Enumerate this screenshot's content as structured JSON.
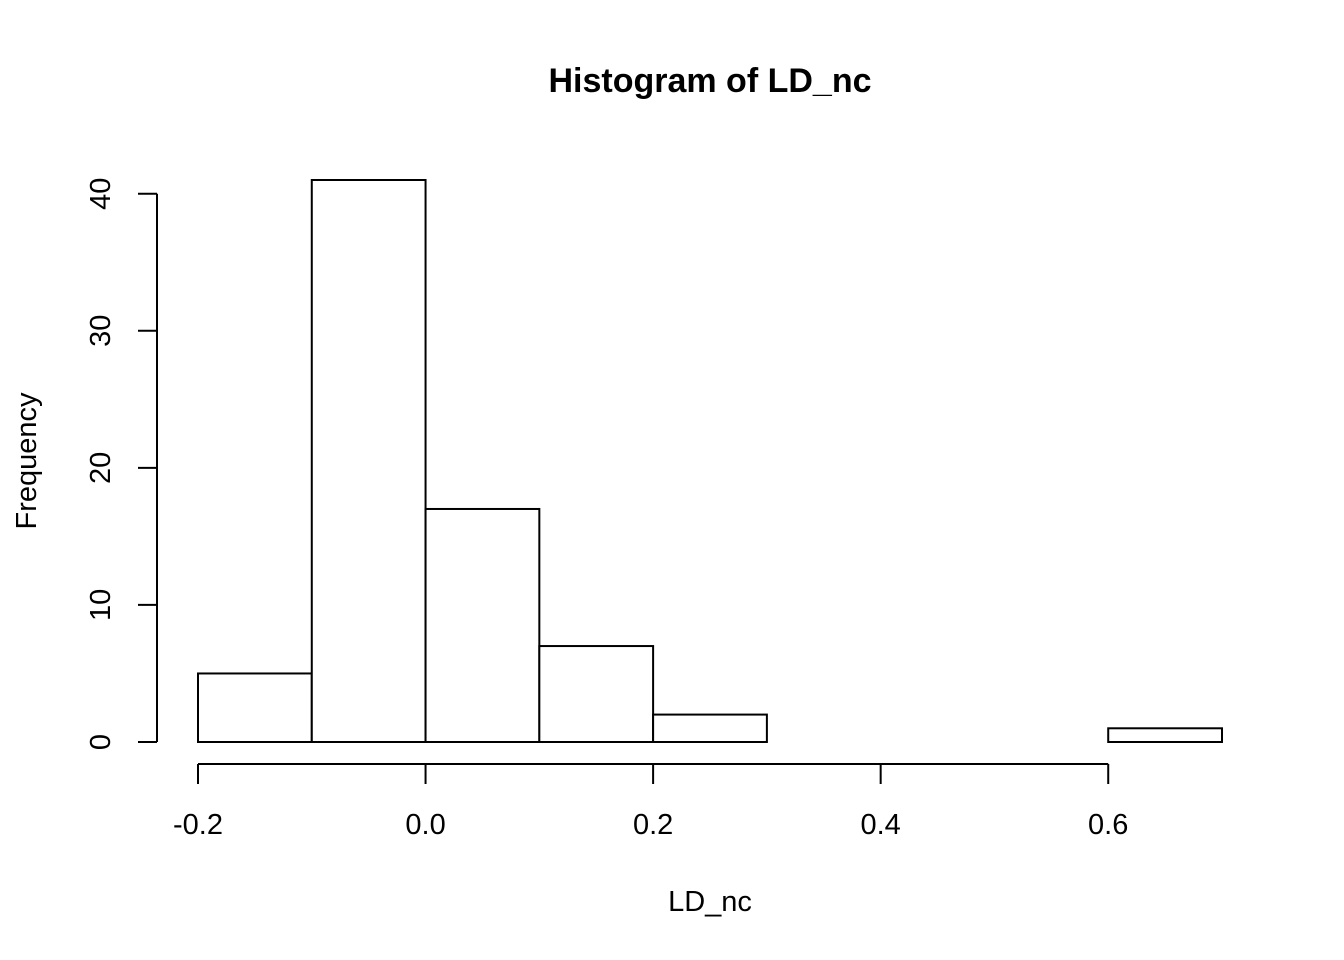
{
  "chart_data": {
    "type": "bar",
    "title": "Histogram of LD_nc",
    "xlabel": "LD_nc",
    "ylabel": "Frequency",
    "bins": [
      {
        "start": -0.2,
        "end": -0.1,
        "count": 5
      },
      {
        "start": -0.1,
        "end": 0.0,
        "count": 41
      },
      {
        "start": 0.0,
        "end": 0.1,
        "count": 17
      },
      {
        "start": 0.1,
        "end": 0.2,
        "count": 7
      },
      {
        "start": 0.2,
        "end": 0.3,
        "count": 2
      },
      {
        "start": 0.3,
        "end": 0.4,
        "count": 0
      },
      {
        "start": 0.4,
        "end": 0.5,
        "count": 0
      },
      {
        "start": 0.5,
        "end": 0.6,
        "count": 0
      },
      {
        "start": 0.6,
        "end": 0.7,
        "count": 1
      }
    ],
    "xticks": [
      -0.2,
      0.0,
      0.2,
      0.4,
      0.6
    ],
    "xtick_labels": [
      "-0.2",
      "0.0",
      "0.2",
      "0.4",
      "0.6"
    ],
    "yticks": [
      0,
      10,
      20,
      30,
      40
    ],
    "ytick_labels": [
      "0",
      "10",
      "20",
      "30",
      "40"
    ],
    "xlim": [
      -0.2,
      0.7
    ],
    "ylim": [
      0,
      41
    ],
    "grid": false,
    "bar_fill": "#ffffff",
    "bar_stroke": "#000000"
  }
}
